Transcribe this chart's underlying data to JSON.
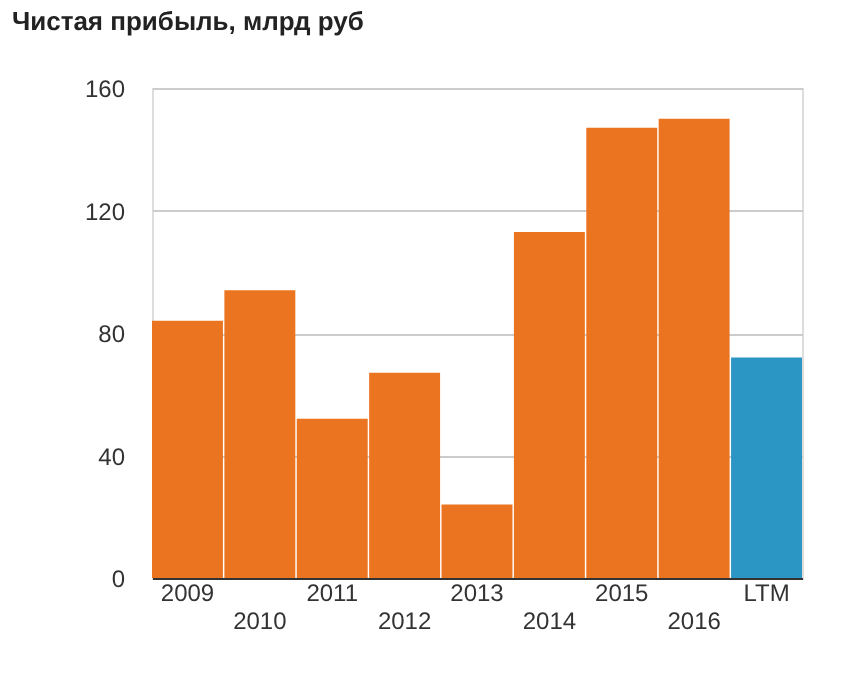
{
  "chart_data": {
    "type": "bar",
    "title": "Чистая прибыль, млрд руб",
    "categories": [
      "2009",
      "2010",
      "2011",
      "2012",
      "2013",
      "2014",
      "2015",
      "2016",
      "LTM"
    ],
    "values": [
      84,
      94,
      52,
      67,
      24,
      113,
      147,
      150,
      72
    ],
    "colors": [
      "#eb7421",
      "#eb7421",
      "#eb7421",
      "#eb7421",
      "#eb7421",
      "#eb7421",
      "#eb7421",
      "#eb7421",
      "#2b95c3"
    ],
    "ylim": [
      0,
      160
    ],
    "yticks": [
      0,
      40,
      80,
      120,
      160
    ],
    "grid": "y"
  }
}
